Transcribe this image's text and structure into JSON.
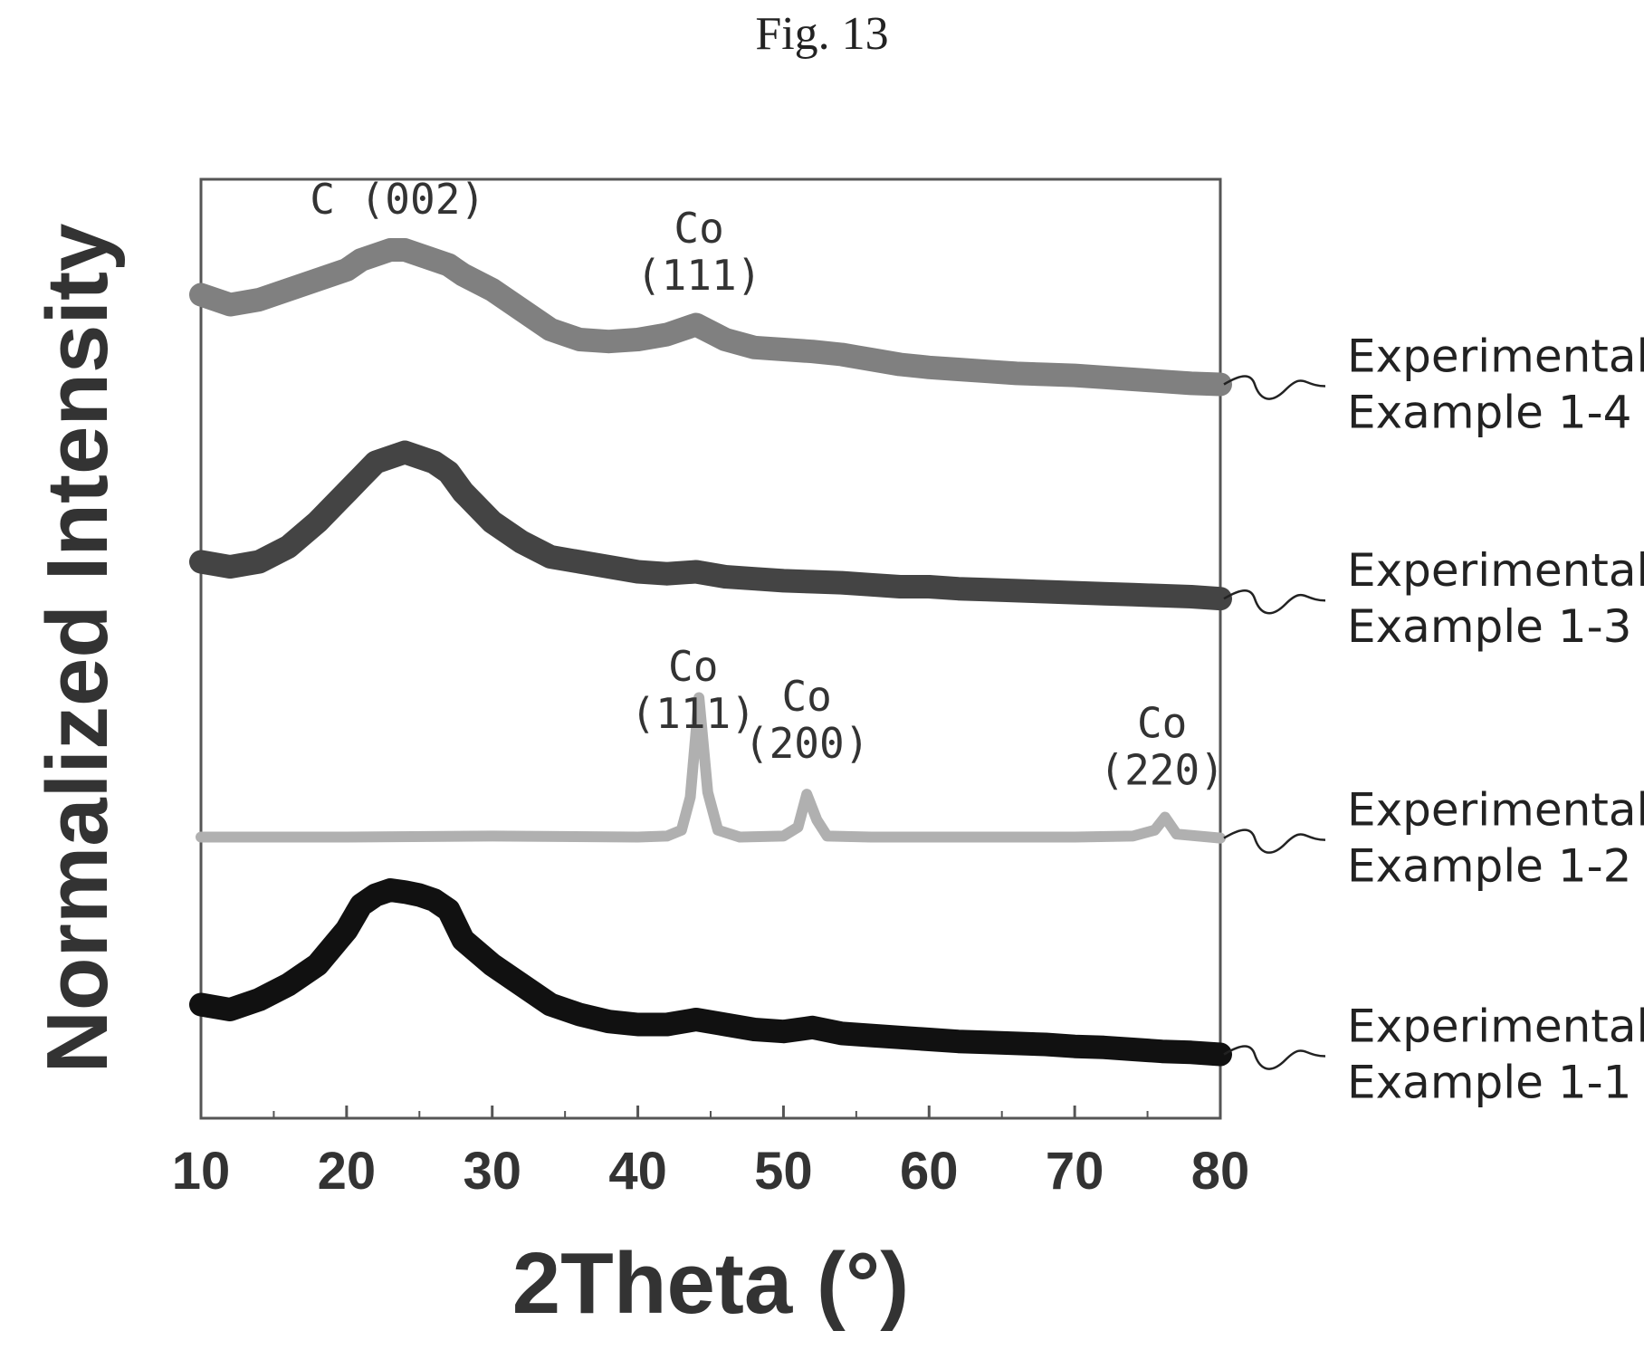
{
  "figure_title": "Fig. 13",
  "chart_data": {
    "type": "line",
    "xlabel": "2Theta (°)",
    "ylabel": "Normalized Intensity",
    "xlim": [
      10,
      80
    ],
    "xticks": [
      10,
      20,
      30,
      40,
      50,
      60,
      70,
      80
    ],
    "x_tick_labels": [
      "10",
      "20",
      "30",
      "40",
      "50",
      "60",
      "70",
      "80"
    ],
    "y_ticks_shown": false,
    "grid": false,
    "legend": "right-side labels",
    "series": [
      {
        "name": "Experimental Example 1-1",
        "label_lines": [
          "Experimental",
          "Example 1-1"
        ],
        "color": "#111111",
        "x": [
          10,
          12,
          14,
          16,
          18,
          20,
          21,
          22,
          23,
          24,
          25,
          26,
          27,
          28,
          30,
          32,
          34,
          36,
          38,
          40,
          42,
          44,
          46,
          48,
          50,
          52,
          54,
          56,
          58,
          60,
          62,
          64,
          66,
          68,
          70,
          72,
          74,
          76,
          78,
          80
        ],
        "values": [
          0.55,
          0.5,
          0.6,
          0.75,
          0.95,
          1.3,
          1.55,
          1.65,
          1.7,
          1.68,
          1.65,
          1.6,
          1.5,
          1.2,
          0.95,
          0.75,
          0.55,
          0.45,
          0.38,
          0.35,
          0.35,
          0.4,
          0.35,
          0.3,
          0.28,
          0.32,
          0.26,
          0.24,
          0.22,
          0.2,
          0.18,
          0.17,
          0.16,
          0.15,
          0.13,
          0.12,
          0.1,
          0.08,
          0.07,
          0.05
        ]
      },
      {
        "name": "Experimental Example 1-2",
        "label_lines": [
          "Experimental",
          "Example 1-2"
        ],
        "color": "#b0b0b0",
        "x": [
          10,
          20,
          30,
          40,
          42,
          43,
          43.6,
          44.2,
          44.8,
          45.5,
          47,
          50,
          51,
          51.6,
          52.3,
          53,
          56,
          60,
          65,
          70,
          74,
          75.5,
          76.2,
          77,
          80
        ],
        "values": [
          0.05,
          0.05,
          0.06,
          0.05,
          0.06,
          0.12,
          0.45,
          1.45,
          0.5,
          0.12,
          0.05,
          0.06,
          0.15,
          0.48,
          0.22,
          0.06,
          0.05,
          0.05,
          0.05,
          0.05,
          0.06,
          0.12,
          0.25,
          0.08,
          0.04
        ]
      },
      {
        "name": "Experimental Example 1-3",
        "label_lines": [
          "Experimental",
          "Example 1-3"
        ],
        "color": "#444444",
        "x": [
          10,
          12,
          14,
          16,
          18,
          20,
          21,
          22,
          23,
          24,
          25,
          26,
          27,
          28,
          30,
          32,
          34,
          36,
          38,
          40,
          42,
          44,
          46,
          48,
          50,
          52,
          54,
          56,
          58,
          60,
          62,
          64,
          66,
          68,
          70,
          72,
          74,
          76,
          78,
          80
        ],
        "values": [
          0.45,
          0.4,
          0.45,
          0.6,
          0.85,
          1.15,
          1.3,
          1.45,
          1.5,
          1.55,
          1.5,
          1.45,
          1.35,
          1.15,
          0.85,
          0.65,
          0.5,
          0.45,
          0.4,
          0.35,
          0.33,
          0.35,
          0.3,
          0.28,
          0.26,
          0.25,
          0.24,
          0.22,
          0.2,
          0.2,
          0.18,
          0.17,
          0.16,
          0.15,
          0.14,
          0.13,
          0.12,
          0.11,
          0.1,
          0.08
        ]
      },
      {
        "name": "Experimental Example 1-4",
        "label_lines": [
          "Experimental",
          "Example 1-4"
        ],
        "color": "#808080",
        "x": [
          10,
          12,
          14,
          16,
          18,
          20,
          21,
          22,
          23,
          24,
          25,
          26,
          27,
          28,
          30,
          32,
          34,
          36,
          38,
          40,
          42,
          44,
          46,
          48,
          50,
          52,
          54,
          56,
          58,
          60,
          62,
          64,
          66,
          68,
          70,
          72,
          74,
          76,
          78,
          80
        ],
        "values": [
          0.95,
          0.85,
          0.9,
          1.0,
          1.1,
          1.2,
          1.3,
          1.35,
          1.4,
          1.4,
          1.35,
          1.3,
          1.25,
          1.15,
          1.0,
          0.8,
          0.6,
          0.5,
          0.48,
          0.5,
          0.55,
          0.65,
          0.5,
          0.42,
          0.4,
          0.38,
          0.35,
          0.3,
          0.25,
          0.22,
          0.2,
          0.18,
          0.16,
          0.15,
          0.14,
          0.12,
          0.1,
          0.08,
          0.06,
          0.05
        ]
      }
    ],
    "annotations": [
      {
        "lines": [
          "C (002)"
        ],
        "x": 23.5,
        "series": "Experimental Example 1-4"
      },
      {
        "lines": [
          "Co",
          "(111)"
        ],
        "x": 44.2,
        "series": "Experimental Example 1-4"
      },
      {
        "lines": [
          "Co",
          "(111)"
        ],
        "x": 43.8,
        "series": "Experimental Example 1-2"
      },
      {
        "lines": [
          "Co",
          "(200)"
        ],
        "x": 51.6,
        "series": "Experimental Example 1-2"
      },
      {
        "lines": [
          "Co",
          "(220)"
        ],
        "x": 76.0,
        "series": "Experimental Example 1-2"
      }
    ]
  }
}
